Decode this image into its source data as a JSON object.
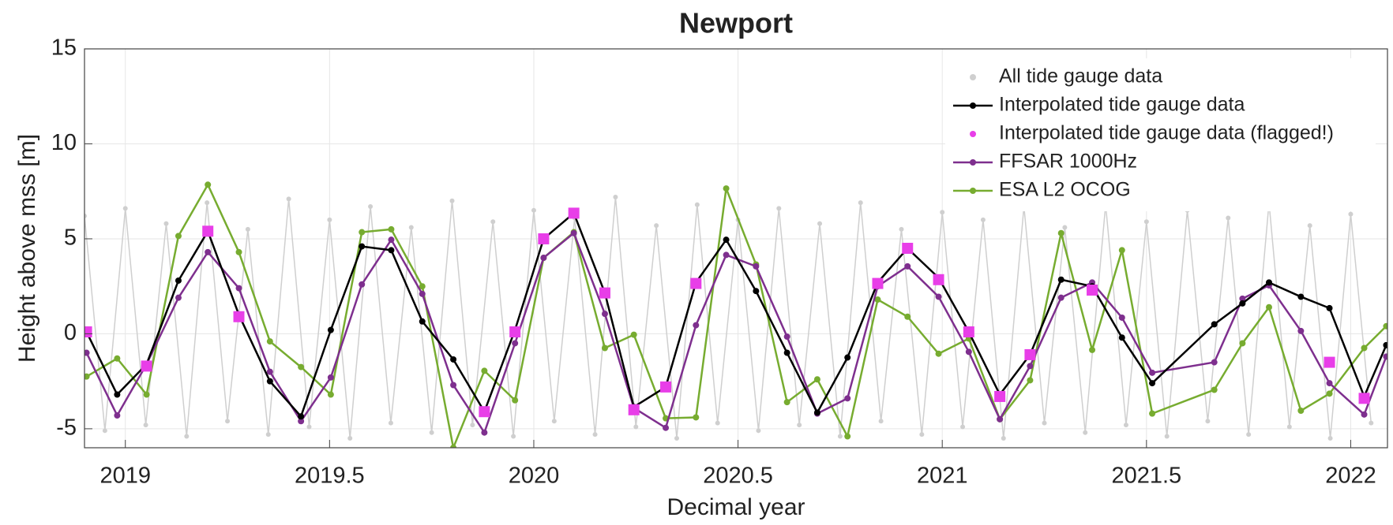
{
  "chart_data": {
    "type": "line",
    "title": "Newport",
    "xlabel": "Decimal year",
    "ylabel": "Height above mss [m]",
    "xlim": [
      2018.9,
      2022.09
    ],
    "ylim": [
      -6,
      15
    ],
    "xticks": [
      2019,
      2019.5,
      2020,
      2020.5,
      2021,
      2021.5,
      2022
    ],
    "yticks": [
      -5,
      0,
      5,
      10,
      15
    ],
    "grid": true,
    "legend": "upper right",
    "x": [
      2018.905,
      2018.98,
      2019.052,
      2019.13,
      2019.202,
      2019.278,
      2019.354,
      2019.43,
      2019.503,
      2019.579,
      2019.651,
      2019.727,
      2019.803,
      2019.879,
      2019.954,
      2020.024,
      2020.098,
      2020.174,
      2020.245,
      2020.323,
      2020.397,
      2020.471,
      2020.544,
      2020.62,
      2020.694,
      2020.768,
      2020.842,
      2020.915,
      2020.991,
      2021.065,
      2021.141,
      2021.215,
      2021.291,
      2021.367,
      2021.44,
      2021.514,
      2021.666,
      2021.735,
      2021.8,
      2021.878,
      2021.948,
      2022.033,
      2022.087
    ],
    "series": [
      {
        "name": "All tide gauge data",
        "color": "#cfcfcf",
        "style": "markers",
        "x": [
          2018.9,
          2018.95,
          2019,
          2019.05,
          2019.1,
          2019.15,
          2019.2,
          2019.25,
          2019.3,
          2019.35,
          2019.4,
          2019.45,
          2019.5,
          2019.55,
          2019.6,
          2019.65,
          2019.7,
          2019.75,
          2019.8,
          2019.85,
          2019.9,
          2019.95,
          2020,
          2020.05,
          2020.1,
          2020.15,
          2020.2,
          2020.25,
          2020.3,
          2020.35,
          2020.4,
          2020.45,
          2020.5,
          2020.55,
          2020.6,
          2020.65,
          2020.7,
          2020.75,
          2020.8,
          2020.85,
          2020.9,
          2020.95,
          2021,
          2021.05,
          2021.1,
          2021.15,
          2021.2,
          2021.25,
          2021.3,
          2021.35,
          2021.4,
          2021.45,
          2021.5,
          2021.55,
          2021.6,
          2021.65,
          2021.7,
          2021.75,
          2021.8,
          2021.85,
          2021.9,
          2021.95,
          2022,
          2022.05
        ],
        "values": [
          6.2,
          -5.1,
          6.6,
          -4.8,
          5.8,
          -5.4,
          6.9,
          -4.6,
          5.5,
          -5.3,
          7.1,
          -4.9,
          6.0,
          -5.5,
          6.7,
          -4.7,
          5.6,
          -5.2,
          7.0,
          -4.8,
          5.9,
          -5.4,
          6.5,
          -4.6,
          6.1,
          -5.3,
          7.2,
          -4.9,
          5.7,
          -5.5,
          6.8,
          -4.7,
          6.0,
          -5.1,
          6.6,
          -4.8,
          5.8,
          -5.4,
          6.9,
          -4.6,
          5.5,
          -5.3,
          6.4,
          -4.9,
          6.0,
          -5.5,
          6.7,
          -4.7,
          5.6,
          -5.2,
          6.8,
          -4.8,
          5.9,
          -5.4,
          6.5,
          -4.6,
          6.1,
          -5.3,
          6.9,
          -4.9,
          5.7,
          -5.5,
          6.3,
          -4.7
        ]
      },
      {
        "name": "Interpolated tide gauge data",
        "color": "#000000",
        "style": "lines+markers",
        "values": [
          0.1,
          -3.2,
          -1.6,
          2.8,
          5.4,
          1.0,
          -2.5,
          -4.35,
          0.2,
          4.6,
          4.4,
          0.65,
          -1.35,
          -4.1,
          0.2,
          5.0,
          6.35,
          2.15,
          -3.85,
          -2.8,
          2.7,
          4.95,
          2.25,
          -1.0,
          -4.15,
          -1.25,
          2.7,
          4.5,
          2.95,
          0.1,
          -3.2,
          -1.1,
          2.85,
          2.5,
          -0.2,
          -2.6,
          0.5,
          1.6,
          2.7,
          1.95,
          1.35,
          -3.3,
          -0.6
        ]
      },
      {
        "name": "Interpolated tide gauge data (flagged!)",
        "color": "#e83ee8",
        "style": "markers",
        "marker": "square",
        "values": [
          0.1,
          null,
          -1.7,
          null,
          5.4,
          0.9,
          null,
          null,
          null,
          null,
          null,
          null,
          null,
          -4.1,
          0.1,
          5.0,
          6.35,
          2.15,
          -4.0,
          -2.8,
          2.65,
          null,
          null,
          null,
          null,
          null,
          2.65,
          4.5,
          2.85,
          0.1,
          -3.3,
          -1.1,
          null,
          2.3,
          null,
          null,
          null,
          null,
          null,
          null,
          -1.5,
          -3.4,
          null
        ]
      },
      {
        "name": "FFSAR 1000Hz",
        "color": "#7e2f8e",
        "style": "lines+markers",
        "values": [
          -1.0,
          -4.3,
          -1.6,
          1.9,
          4.3,
          2.4,
          -2.0,
          -4.6,
          -2.3,
          2.6,
          4.95,
          2.1,
          -2.7,
          -5.2,
          -0.5,
          4.0,
          5.3,
          1.05,
          -3.9,
          -4.95,
          0.45,
          4.15,
          3.55,
          -0.15,
          -4.2,
          -3.4,
          2.5,
          3.55,
          1.95,
          -0.95,
          -4.5,
          -1.7,
          1.9,
          2.7,
          0.85,
          -2.05,
          -1.5,
          1.85,
          2.55,
          0.15,
          -2.6,
          -4.25,
          -1.2
        ]
      },
      {
        "name": "ESA L2 OCOG",
        "color": "#77ac30",
        "style": "lines+markers",
        "values": [
          -2.25,
          -1.3,
          -3.2,
          5.15,
          7.85,
          4.3,
          -0.4,
          -1.75,
          -3.2,
          5.35,
          5.5,
          2.5,
          -6.0,
          -1.95,
          -3.5,
          4.0,
          5.35,
          -0.75,
          -0.05,
          -4.45,
          -4.4,
          7.65,
          3.65,
          -3.6,
          -2.4,
          -5.4,
          1.8,
          0.9,
          -1.05,
          -0.25,
          -4.5,
          -2.45,
          5.3,
          -0.85,
          4.4,
          -4.2,
          -2.95,
          -0.5,
          1.4,
          -4.05,
          -3.15,
          -0.75,
          0.4
        ]
      }
    ]
  }
}
